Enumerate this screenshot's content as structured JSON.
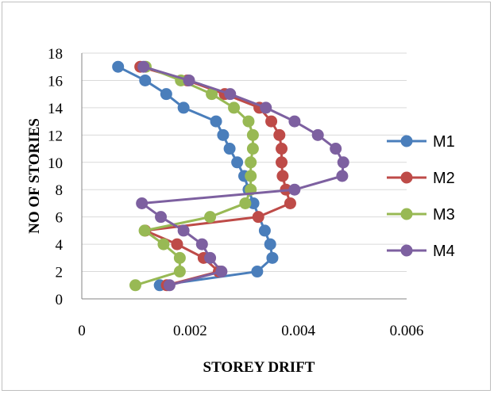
{
  "chart_data": {
    "type": "scatter-line",
    "title": "",
    "xlabel": "STOREY DRIFT",
    "ylabel": "NO OF STORIES",
    "xlim": [
      0,
      0.006
    ],
    "ylim": [
      0,
      18
    ],
    "x_ticks": [
      "0",
      "0.002",
      "0.004",
      "0.006"
    ],
    "y_ticks": [
      "0",
      "2",
      "4",
      "6",
      "8",
      "10",
      "12",
      "14",
      "16",
      "18"
    ],
    "grid": "horizontal",
    "legend_position": "right",
    "series": [
      {
        "name": "M1",
        "color": "#4a7ebb",
        "points": [
          [
            0.00144,
            1
          ],
          [
            0.00324,
            2
          ],
          [
            0.00352,
            3
          ],
          [
            0.00348,
            4
          ],
          [
            0.00338,
            5
          ],
          [
            0.00317,
            7
          ],
          [
            0.00308,
            8
          ],
          [
            0.003,
            9
          ],
          [
            0.00287,
            10
          ],
          [
            0.00273,
            11
          ],
          [
            0.00261,
            12
          ],
          [
            0.00248,
            13
          ],
          [
            0.00188,
            14
          ],
          [
            0.00156,
            15
          ],
          [
            0.00117,
            16
          ],
          [
            0.00067,
            17
          ]
        ]
      },
      {
        "name": "M2",
        "color": "#be4b48",
        "points": [
          [
            0.00157,
            1
          ],
          [
            0.00253,
            2
          ],
          [
            0.00225,
            3
          ],
          [
            0.00176,
            4
          ],
          [
            0.00117,
            5
          ],
          [
            0.00326,
            6
          ],
          [
            0.00385,
            7
          ],
          [
            0.00377,
            8
          ],
          [
            0.00371,
            9
          ],
          [
            0.00369,
            10
          ],
          [
            0.00369,
            11
          ],
          [
            0.00365,
            12
          ],
          [
            0.0035,
            13
          ],
          [
            0.00328,
            14
          ],
          [
            0.00264,
            15
          ],
          [
            0.00195,
            16
          ],
          [
            0.00108,
            17
          ]
        ]
      },
      {
        "name": "M3",
        "color": "#98b954",
        "points": [
          [
            0.00099,
            1
          ],
          [
            0.00181,
            2
          ],
          [
            0.00181,
            3
          ],
          [
            0.00151,
            4
          ],
          [
            0.00116,
            5
          ],
          [
            0.00237,
            6
          ],
          [
            0.00302,
            7
          ],
          [
            0.00312,
            8
          ],
          [
            0.00312,
            9
          ],
          [
            0.00312,
            10
          ],
          [
            0.00316,
            11
          ],
          [
            0.00316,
            12
          ],
          [
            0.00308,
            13
          ],
          [
            0.00281,
            14
          ],
          [
            0.0024,
            15
          ],
          [
            0.00183,
            16
          ],
          [
            0.00118,
            17
          ]
        ]
      },
      {
        "name": "M4",
        "color": "#7d60a0",
        "points": [
          [
            0.00162,
            1
          ],
          [
            0.00258,
            2
          ],
          [
            0.00237,
            3
          ],
          [
            0.00222,
            4
          ],
          [
            0.00188,
            5
          ],
          [
            0.00146,
            6
          ],
          [
            0.00111,
            7
          ],
          [
            0.00393,
            8
          ],
          [
            0.00481,
            9
          ],
          [
            0.00483,
            10
          ],
          [
            0.00469,
            11
          ],
          [
            0.00436,
            12
          ],
          [
            0.00393,
            13
          ],
          [
            0.0034,
            14
          ],
          [
            0.00274,
            15
          ],
          [
            0.00198,
            16
          ],
          [
            0.00114,
            17
          ]
        ]
      }
    ]
  }
}
